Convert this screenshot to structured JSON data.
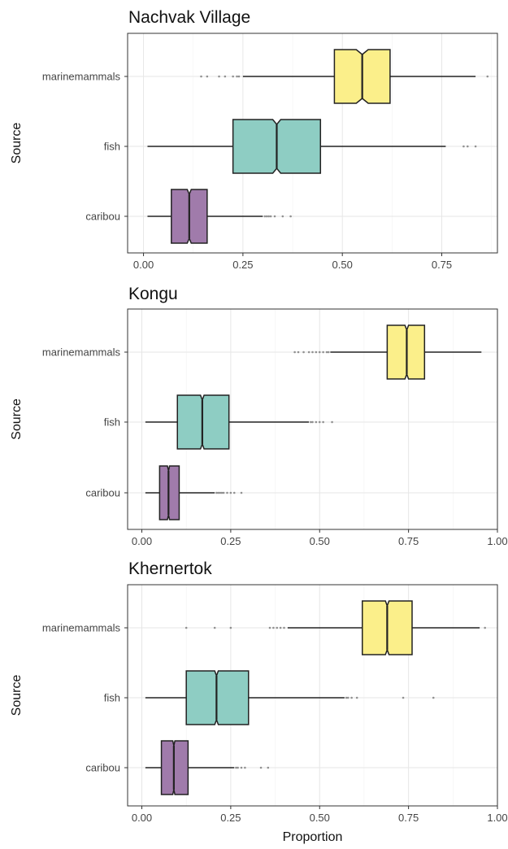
{
  "chart_data": [
    {
      "type": "boxplot",
      "title": "Nachvak Village",
      "xlabel": "",
      "ylabel": "Source",
      "orientation": "horizontal",
      "notched": true,
      "xlim": [
        -0.04,
        0.89
      ],
      "xticks": [
        0,
        0.25,
        0.5,
        0.75
      ],
      "xtick_labels": [
        "0.00",
        "0.25",
        "0.50",
        "0.75"
      ],
      "categories": [
        "marinemammals",
        "fish",
        "caribou"
      ],
      "colors": [
        "#fbef8a",
        "#8ecdc3",
        "#a07bab"
      ],
      "grid": true,
      "series": [
        {
          "category": "marinemammals",
          "whisker_low": 0.25,
          "q1": 0.48,
          "median": 0.55,
          "q3": 0.62,
          "whisker_high": 0.835,
          "notch_low": 0.535,
          "notch_high": 0.565,
          "outliers": [
            0.145,
            0.16,
            0.19,
            0.205,
            0.225,
            0.235,
            0.24,
            0.865
          ]
        },
        {
          "category": "fish",
          "whisker_low": 0.01,
          "q1": 0.225,
          "median": 0.335,
          "q3": 0.445,
          "whisker_high": 0.76,
          "notch_low": 0.325,
          "notch_high": 0.345,
          "outliers": [
            0.805,
            0.815,
            0.835
          ]
        },
        {
          "category": "caribou",
          "whisker_low": 0.01,
          "q1": 0.07,
          "median": 0.115,
          "q3": 0.16,
          "whisker_high": 0.3,
          "notch_low": 0.11,
          "notch_high": 0.12,
          "outliers": [
            0.305,
            0.31,
            0.315,
            0.32,
            0.33,
            0.35,
            0.37
          ]
        }
      ]
    },
    {
      "type": "boxplot",
      "title": "Kongu",
      "xlabel": "",
      "ylabel": "Source",
      "orientation": "horizontal",
      "notched": true,
      "xlim": [
        -0.04,
        1.0
      ],
      "xticks": [
        0,
        0.25,
        0.5,
        0.75,
        1.0
      ],
      "xtick_labels": [
        "0.00",
        "0.25",
        "0.50",
        "0.75",
        "1.00"
      ],
      "categories": [
        "marinemammals",
        "fish",
        "caribou"
      ],
      "colors": [
        "#fbef8a",
        "#8ecdc3",
        "#a07bab"
      ],
      "grid": true,
      "series": [
        {
          "category": "marinemammals",
          "whisker_low": 0.53,
          "q1": 0.69,
          "median": 0.745,
          "q3": 0.795,
          "whisker_high": 0.955,
          "notch_low": 0.74,
          "notch_high": 0.75,
          "outliers": [
            0.43,
            0.44,
            0.455,
            0.47,
            0.48,
            0.49,
            0.5,
            0.51,
            0.52,
            0.525
          ]
        },
        {
          "category": "fish",
          "whisker_low": 0.01,
          "q1": 0.1,
          "median": 0.17,
          "q3": 0.245,
          "whisker_high": 0.47,
          "notch_low": 0.165,
          "notch_high": 0.175,
          "outliers": [
            0.475,
            0.48,
            0.49,
            0.5,
            0.51,
            0.535
          ]
        },
        {
          "category": "caribou",
          "whisker_low": 0.01,
          "q1": 0.05,
          "median": 0.075,
          "q3": 0.105,
          "whisker_high": 0.205,
          "notch_low": 0.072,
          "notch_high": 0.078,
          "outliers": [
            0.21,
            0.215,
            0.22,
            0.225,
            0.23,
            0.24,
            0.25,
            0.26,
            0.28
          ]
        }
      ]
    },
    {
      "type": "boxplot",
      "title": "Khernertok",
      "xlabel": "Proportion",
      "ylabel": "Source",
      "orientation": "horizontal",
      "notched": true,
      "xlim": [
        -0.04,
        1.0
      ],
      "xticks": [
        0,
        0.25,
        0.5,
        0.75,
        1.0
      ],
      "xtick_labels": [
        "0.00",
        "0.25",
        "0.50",
        "0.75",
        "1.00"
      ],
      "categories": [
        "marinemammals",
        "fish",
        "caribou"
      ],
      "colors": [
        "#fbef8a",
        "#8ecdc3",
        "#a07bab"
      ],
      "grid": true,
      "series": [
        {
          "category": "marinemammals",
          "whisker_low": 0.41,
          "q1": 0.62,
          "median": 0.69,
          "q3": 0.76,
          "whisker_high": 0.95,
          "notch_low": 0.685,
          "notch_high": 0.695,
          "outliers": [
            0.125,
            0.205,
            0.25,
            0.36,
            0.37,
            0.38,
            0.39,
            0.4,
            0.965
          ]
        },
        {
          "category": "fish",
          "whisker_low": 0.01,
          "q1": 0.125,
          "median": 0.21,
          "q3": 0.3,
          "whisker_high": 0.57,
          "notch_low": 0.205,
          "notch_high": 0.215,
          "outliers": [
            0.575,
            0.58,
            0.59,
            0.605,
            0.735,
            0.82
          ]
        },
        {
          "category": "caribou",
          "whisker_low": 0.01,
          "q1": 0.055,
          "median": 0.09,
          "q3": 0.13,
          "whisker_high": 0.26,
          "notch_low": 0.087,
          "notch_high": 0.093,
          "outliers": [
            0.265,
            0.27,
            0.28,
            0.29,
            0.335,
            0.355
          ]
        }
      ]
    }
  ]
}
